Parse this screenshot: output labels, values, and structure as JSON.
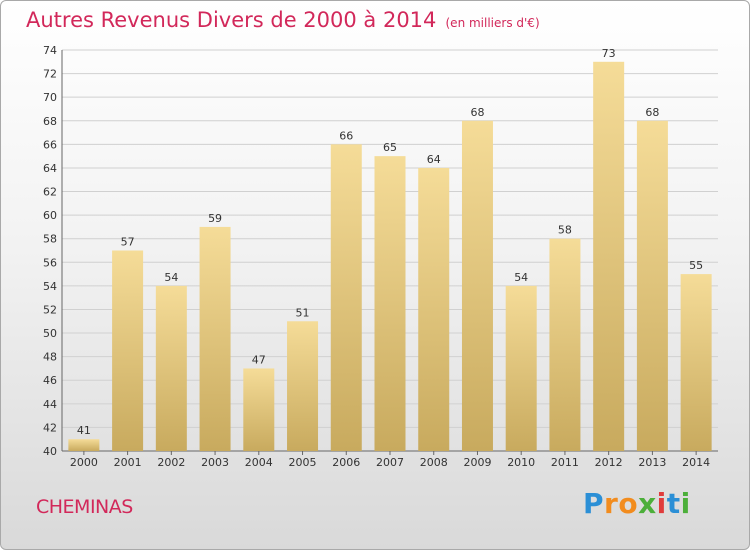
{
  "header": {
    "title": "Autres Revenus Divers de 2000 à 2014",
    "unit": "(en milliers d'€)"
  },
  "footer": {
    "commune": "CHEMINAS"
  },
  "logo": {
    "name": "Proxiti",
    "letters": [
      {
        "char": "P",
        "color": "#2b8fd6"
      },
      {
        "char": "r",
        "color": "#f28c1e"
      },
      {
        "char": "o",
        "color": "#f28c1e"
      },
      {
        "char": "x",
        "color": "#4caf3a"
      },
      {
        "char": "i",
        "color": "#e03c3c"
      },
      {
        "char": "t",
        "color": "#2b8fd6"
      },
      {
        "char": "i",
        "color": "#4caf3a"
      }
    ]
  },
  "colors": {
    "title": "#d2285a",
    "bar_light": "#f5dc98",
    "bar_dark": "#c8aa5e",
    "grid": "#d0d0d0"
  },
  "chart_data": {
    "type": "bar",
    "title": "Autres Revenus Divers de 2000 à 2014",
    "subtitle": "(en milliers d'€)",
    "categories": [
      "2000",
      "2001",
      "2002",
      "2003",
      "2004",
      "2005",
      "2006",
      "2007",
      "2008",
      "2009",
      "2010",
      "2011",
      "2012",
      "2013",
      "2014"
    ],
    "values": [
      41,
      57,
      54,
      59,
      47,
      51,
      66,
      65,
      64,
      68,
      54,
      58,
      73,
      68,
      55
    ],
    "ylim": [
      40,
      74
    ],
    "yticks": [
      40,
      42,
      44,
      46,
      48,
      50,
      52,
      54,
      56,
      58,
      60,
      62,
      64,
      66,
      68,
      70,
      72,
      74
    ],
    "grid": true,
    "data_labels": true
  }
}
